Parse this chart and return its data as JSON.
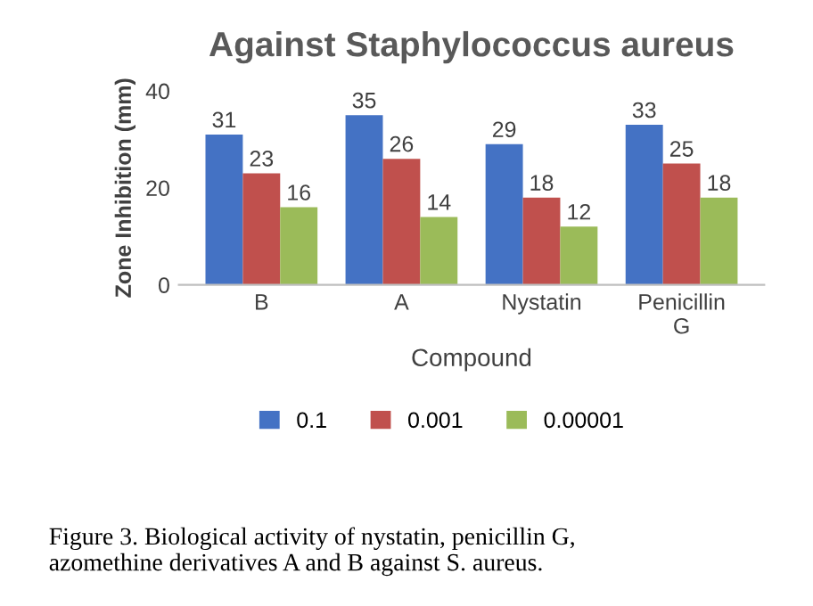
{
  "chart_data": {
    "type": "bar",
    "title": "Against Staphylococcus aureus",
    "xlabel": "Compound",
    "ylabel": "Zone Inhibition (mm)",
    "categories": [
      "B",
      "A",
      "Nystatin",
      "Penicillin\nG"
    ],
    "series": [
      {
        "name": "0.1",
        "color": "#4472c4",
        "values": [
          31,
          35,
          29,
          33
        ]
      },
      {
        "name": "0.001",
        "color": "#c0504d",
        "values": [
          23,
          26,
          18,
          25
        ]
      },
      {
        "name": "0.00001",
        "color": "#9bbb59",
        "values": [
          16,
          14,
          12,
          18
        ]
      }
    ],
    "ylim": [
      0,
      40
    ],
    "yticks": [
      0,
      20,
      40
    ],
    "data_labels": true,
    "legend": "bottom",
    "grid": false,
    "annotations": [
      "Figure 3. Biological activity of nystatin, penicillin G,\nazomethine derivatives A and B against S. aureus."
    ]
  }
}
